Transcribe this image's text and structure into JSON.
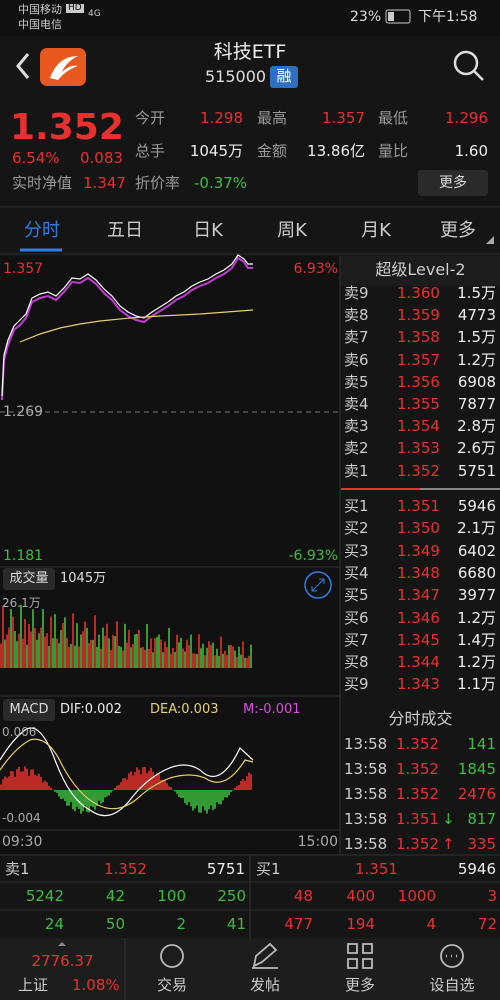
{
  "status_bar": {
    "carrier1": "中国移动",
    "hd": "HD",
    "carrier2": "中国电信",
    "network": "4G",
    "battery": "23%",
    "time": "下午1:58"
  },
  "header": {
    "title": "科技ETF",
    "code": "515000",
    "badge": "融"
  },
  "quote": {
    "price": "1.352",
    "change_pct": "6.54%",
    "change": "0.083",
    "nav_label": "实时净值",
    "nav": "1.347",
    "stats": [
      {
        "label": "今开",
        "value": "1.298",
        "color": "#e8312f"
      },
      {
        "label": "最高",
        "value": "1.357",
        "color": "#e8312f"
      },
      {
        "label": "最低",
        "value": "1.296",
        "color": "#e8312f"
      },
      {
        "label": "总手",
        "value": "1045万",
        "color": "#eeeeee"
      },
      {
        "label": "金额",
        "value": "13.86亿",
        "color": "#eeeeee"
      },
      {
        "label": "量比",
        "value": "1.60",
        "color": "#eeeeee"
      },
      {
        "label": "折价率",
        "value": "-0.37%",
        "color": "#3dbd3d"
      }
    ],
    "more": "更多"
  },
  "tabs": [
    "分时",
    "五日",
    "日K",
    "周K",
    "月K",
    "更多"
  ],
  "chart": {
    "price_high": "1.357",
    "pct_high": "6.93%",
    "price_mid": "1.269",
    "price_low": "1.181",
    "pct_low": "-6.93%",
    "volume_label": "成交量",
    "volume": "1045万",
    "volume_max": "26.1万",
    "macd_label": "MACD",
    "dif": "DIF:0.002",
    "dea": "DEA:0.003",
    "m": "M:-0.001",
    "macd_high": "0.006",
    "macd_low": "-0.004",
    "time_start": "09:30",
    "time_end": "15:00"
  },
  "order_book": {
    "title": "超级Level-2",
    "asks": [
      {
        "label": "卖9",
        "price": "1.360",
        "volume": "1.5万"
      },
      {
        "label": "卖8",
        "price": "1.359",
        "volume": "4773"
      },
      {
        "label": "卖7",
        "price": "1.358",
        "volume": "1.5万"
      },
      {
        "label": "卖6",
        "price": "1.357",
        "volume": "1.2万"
      },
      {
        "label": "卖5",
        "price": "1.356",
        "volume": "6908"
      },
      {
        "label": "卖4",
        "price": "1.355",
        "volume": "7877"
      },
      {
        "label": "卖3",
        "price": "1.354",
        "volume": "2.8万"
      },
      {
        "label": "卖2",
        "price": "1.353",
        "volume": "2.6万"
      },
      {
        "label": "卖1",
        "price": "1.352",
        "volume": "5751"
      }
    ],
    "bids": [
      {
        "label": "买1",
        "price": "1.351",
        "volume": "5946"
      },
      {
        "label": "买2",
        "price": "1.350",
        "volume": "2.1万"
      },
      {
        "label": "买3",
        "price": "1.349",
        "volume": "6402"
      },
      {
        "label": "买4",
        "price": "1.348",
        "volume": "6680"
      },
      {
        "label": "买5",
        "price": "1.347",
        "volume": "3977"
      },
      {
        "label": "买6",
        "price": "1.346",
        "volume": "1.2万"
      },
      {
        "label": "买7",
        "price": "1.345",
        "volume": "1.4万"
      },
      {
        "label": "买8",
        "price": "1.344",
        "volume": "1.2万"
      },
      {
        "label": "买9",
        "price": "1.343",
        "volume": "1.1万"
      }
    ]
  },
  "trades": {
    "title": "分时成交",
    "rows": [
      {
        "time": "13:58",
        "price": "1.352",
        "volume": "141",
        "color": "#3dbd3d"
      },
      {
        "time": "13:58",
        "price": "1.352",
        "volume": "1845",
        "color": "#3dbd3d"
      },
      {
        "time": "13:58",
        "price": "1.352",
        "volume": "2476",
        "color": "#e8312f"
      },
      {
        "time": "13:58",
        "price": "1.351",
        "arrow": "↓",
        "arrow_color": "#3dbd3d",
        "volume": "817",
        "color": "#3dbd3d"
      },
      {
        "time": "13:58",
        "price": "1.352",
        "arrow": "↑",
        "arrow_color": "#e8312f",
        "volume": "335",
        "color": "#e8312f"
      }
    ]
  },
  "summary": {
    "ask_label": "卖1",
    "ask_price": "1.352",
    "ask_volume": "5751",
    "bid_label": "买1",
    "bid_price": "1.351",
    "bid_volume": "5946",
    "rows": [
      [
        "5242",
        "42",
        "100",
        "250",
        "48",
        "400",
        "1000",
        "3"
      ],
      [
        "24",
        "50",
        "2",
        "41",
        "477",
        "194",
        "4",
        "72"
      ]
    ]
  },
  "nav": {
    "index_value": "2776.37",
    "index_name": "上证",
    "index_change": "1.08%",
    "items": [
      "交易",
      "发帖",
      "更多",
      "设自选"
    ]
  }
}
